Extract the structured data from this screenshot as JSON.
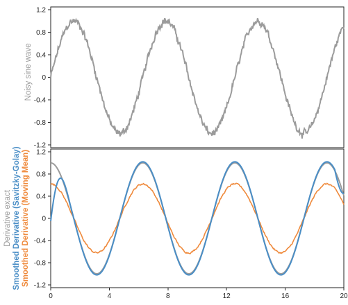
{
  "chart_data": [
    {
      "type": "line",
      "panel": "top",
      "ylabel": "Noisy sine wave",
      "ylabel_color": "#9b9b9b",
      "x_range": [
        0,
        20
      ],
      "ylim": [
        -1.25,
        1.25
      ],
      "yticks": [
        -1.2,
        -0.8,
        -0.4,
        0,
        0.4,
        0.8,
        1.2
      ],
      "xticks": [],
      "grid": false,
      "series": [
        {
          "color": "#9b9b9b",
          "function": "sin(x)",
          "noise_amplitude": 0.08
        }
      ]
    },
    {
      "type": "line",
      "panel": "bottom",
      "ylabel_lines": [
        {
          "text": "Derivative exact",
          "color": "#9b9b9b"
        },
        {
          "text": "Smoothed Derivative (Savitzky-Golay)",
          "color": "#4a8ec6"
        },
        {
          "text": "Smoothed Derivative (Moving Mean)",
          "color": "#ef8a3c"
        }
      ],
      "x_range": [
        0,
        20
      ],
      "ylim": [
        -1.25,
        1.25
      ],
      "yticks": [
        -1.2,
        -0.8,
        -0.4,
        0,
        0.4,
        0.8,
        1.2
      ],
      "xticks": [
        0,
        4,
        8,
        12,
        16,
        20
      ],
      "grid": false,
      "series": [
        {
          "name": "Derivative exact",
          "color": "#9b9b9b",
          "function": "cos(x)"
        },
        {
          "name": "Smoothed Derivative (Savitzky-Golay)",
          "color": "#4a8ec6",
          "function": "cos(x)",
          "edge_deviation": true
        },
        {
          "name": "Smoothed Derivative (Moving Mean)",
          "color": "#ef8a3c",
          "function": "0.62*cos(x)",
          "noise_amplitude": 0.025
        }
      ]
    }
  ]
}
